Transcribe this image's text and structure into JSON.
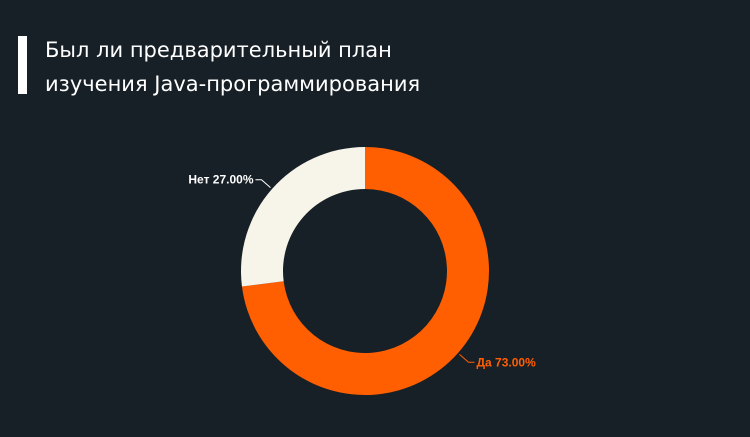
{
  "title": "Был ли предварительный план\nизучения Java-программирования",
  "chart_data": {
    "type": "pie",
    "variant": "donut",
    "categories": [
      "Да",
      "Нет"
    ],
    "values": [
      73.0,
      27.0
    ],
    "labels": [
      "Да 73.00%",
      "Нет 27.00%"
    ],
    "colors": [
      "#ff5f00",
      "#f7f4ea"
    ],
    "label_colors": [
      "#ff5f00",
      "#ffffff"
    ],
    "start": "12 o'clock, clockwise"
  }
}
